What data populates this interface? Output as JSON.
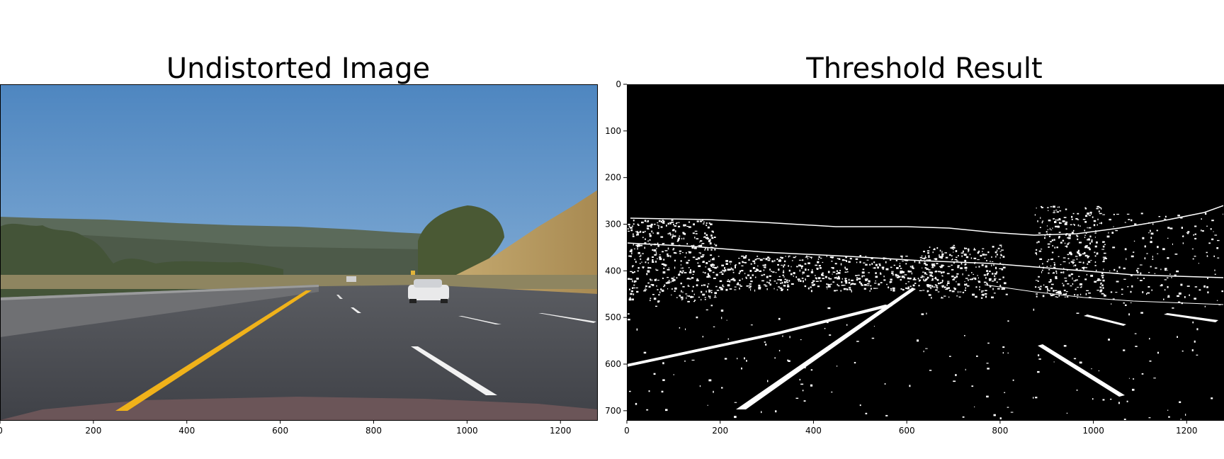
{
  "panels": [
    {
      "title": "Undistorted Image",
      "x_ticks": [
        "0",
        "200",
        "400",
        "600",
        "800",
        "1000",
        "1200"
      ],
      "y_ticks": []
    },
    {
      "title": "Threshold Result",
      "x_ticks": [
        "0",
        "200",
        "400",
        "600",
        "800",
        "1000",
        "1200"
      ],
      "y_ticks": [
        "0",
        "100",
        "200",
        "300",
        "400",
        "500",
        "600",
        "700"
      ]
    }
  ],
  "colors": {
    "sky_top": "#5b8fc4",
    "sky_bottom": "#a6c4df",
    "hill": "#5e6c57",
    "grass": "#b99d62",
    "road": "#4d4f55",
    "lane_yellow": "#f0b21a",
    "lane_white": "#f4f4f4",
    "threshold_bg": "#000000",
    "threshold_fg": "#ffffff"
  }
}
